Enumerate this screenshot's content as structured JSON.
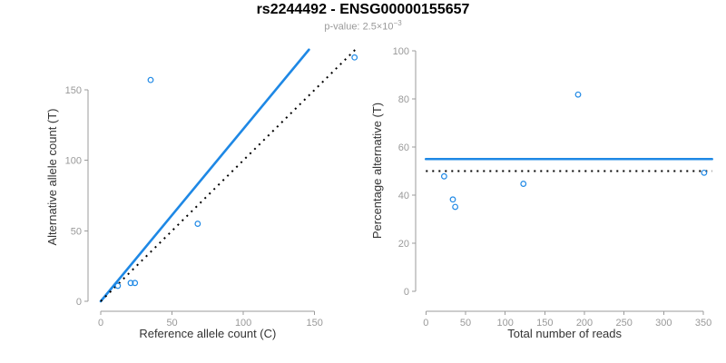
{
  "header": {
    "title": "rs2244492 - ENSG00000155657",
    "subtitle_prefix": "p-value: ",
    "subtitle_mantissa": "2.5×10",
    "subtitle_exponent": "−3"
  },
  "style": {
    "accent_blue": "#1E88E5",
    "line_black": "#000000",
    "axis_color": "#9b9b9b",
    "tick_label_color": "#999999",
    "axis_title_color": "#333333",
    "subtitle_color": "#999999",
    "title_color": "#000000"
  },
  "chart_data": [
    {
      "type": "scatter",
      "name": "allele-counts-panel",
      "xlabel": "Reference allele count (C)",
      "ylabel": "Alternative allele count (T)",
      "xlim": [
        0,
        181
      ],
      "ylim": [
        0,
        180
      ],
      "x_ticks": [
        0,
        50,
        100,
        150
      ],
      "y_ticks": [
        0,
        50,
        100,
        150
      ],
      "grid": false,
      "legend": "none",
      "points": [
        [
          12,
          11
        ],
        [
          21,
          13
        ],
        [
          24,
          13
        ],
        [
          35,
          157
        ],
        [
          68,
          55
        ],
        [
          178,
          173
        ]
      ],
      "lines": [
        {
          "name": "fit-line",
          "style": "solid",
          "color": "#1E88E5",
          "from": [
            0,
            0
          ],
          "to": [
            146,
            178.5
          ],
          "note": "fitted proportion, slope ~1.22"
        },
        {
          "name": "identity-line",
          "style": "dotted",
          "color": "#000000",
          "from": [
            0,
            0
          ],
          "to": [
            180,
            180
          ],
          "note": "y = x expected under 50/50"
        }
      ]
    },
    {
      "type": "scatter",
      "name": "percentage-panel",
      "xlabel": "Total number of reads",
      "ylabel": "Percentage alternative (T)",
      "xlim": [
        0,
        361
      ],
      "ylim": [
        0,
        100
      ],
      "x_ticks": [
        0,
        50,
        100,
        150,
        200,
        250,
        300,
        350
      ],
      "y_ticks": [
        0,
        20,
        40,
        60,
        80,
        100
      ],
      "grid": false,
      "legend": "none",
      "points": [
        [
          23,
          47.8
        ],
        [
          34,
          38.2
        ],
        [
          37,
          35.1
        ],
        [
          123,
          44.7
        ],
        [
          192,
          81.8
        ],
        [
          351,
          49.3
        ]
      ],
      "lines": [
        {
          "name": "mean-line",
          "style": "solid",
          "color": "#1E88E5",
          "hline": 55,
          "note": "overall percentage alternative"
        },
        {
          "name": "null-line",
          "style": "dotted",
          "color": "#000000",
          "hline": 50,
          "note": "50% expected"
        }
      ]
    }
  ]
}
